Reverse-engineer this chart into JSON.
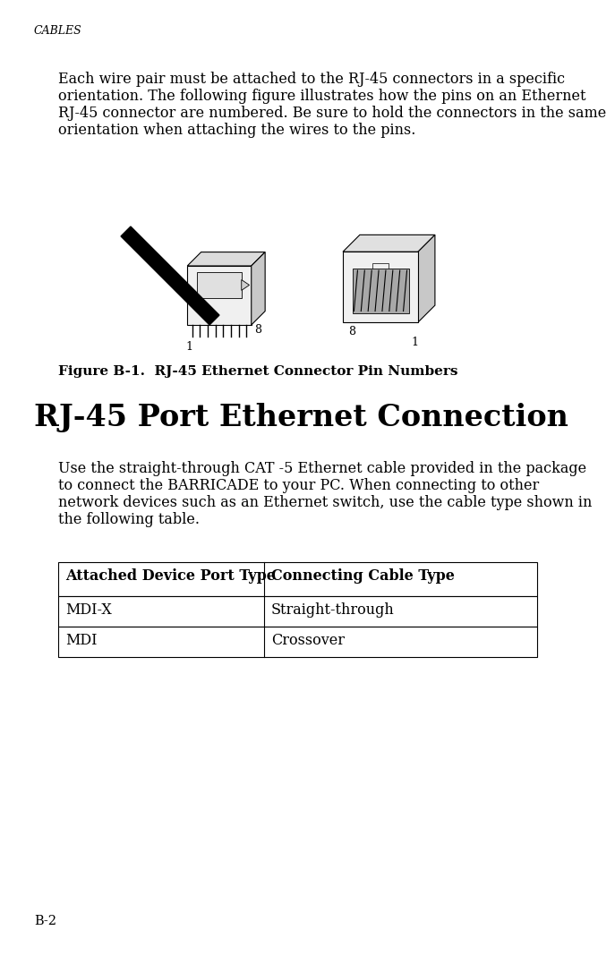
{
  "page_title": "CABLES",
  "page_number": "B-2",
  "para1_lines": [
    "Each wire pair must be attached to the RJ-45 connectors in a specific",
    "orientation. The following figure illustrates how the pins on an Ethernet",
    "RJ-45 connector are numbered. Be sure to hold the connectors in the same",
    "orientation when attaching the wires to the pins."
  ],
  "figure_caption": "Figure B-1.  RJ-45 Ethernet Connector Pin Numbers",
  "section_title": "RJ-45 Port Ethernet Connection",
  "para2_lines": [
    "Use the straight-through CAT -5 Ethernet cable provided in the package",
    "to connect the BARRICADE to your PC. When connecting to other",
    "network devices such as an Ethernet switch, use the cable type shown in",
    "the following table."
  ],
  "table_headers": [
    "Attached Device Port Type",
    "Connecting Cable Type"
  ],
  "table_rows": [
    [
      "MDI-X",
      "Straight-through"
    ],
    [
      "MDI",
      "Crossover"
    ]
  ],
  "bg_color": "#ffffff",
  "text_color": "#000000"
}
